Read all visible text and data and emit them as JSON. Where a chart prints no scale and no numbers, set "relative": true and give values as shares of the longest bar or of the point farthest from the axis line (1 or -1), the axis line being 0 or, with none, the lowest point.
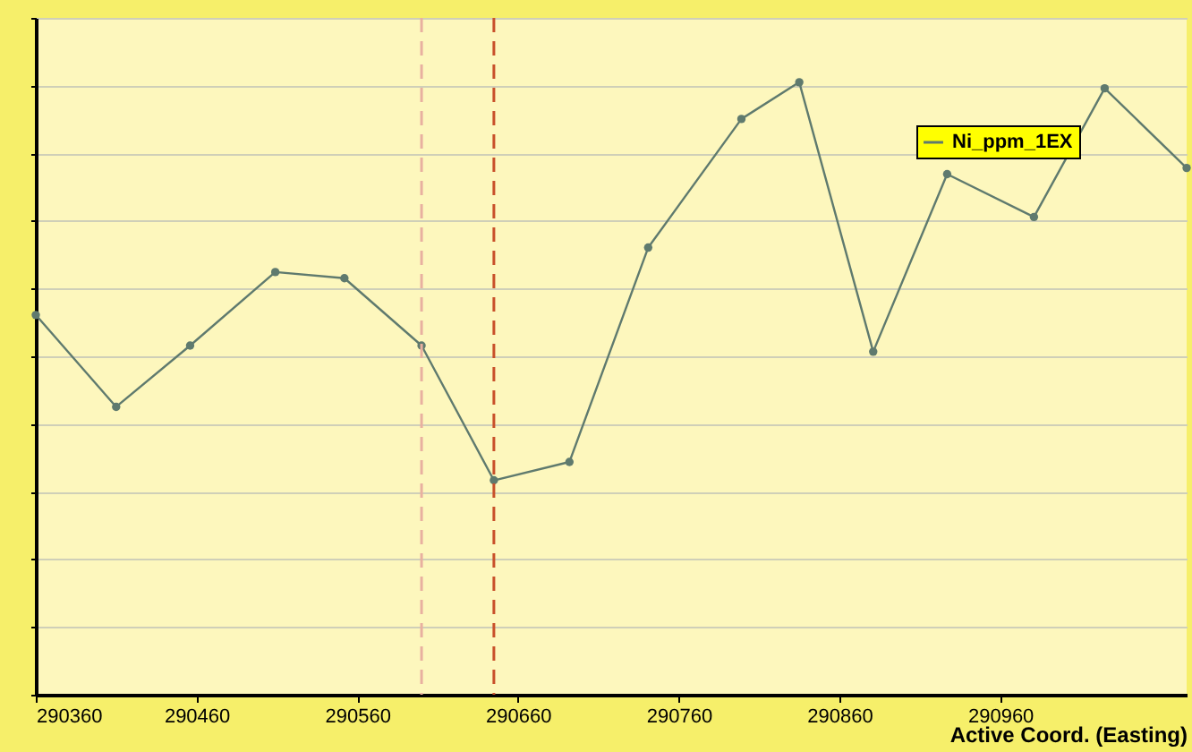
{
  "chart_data": {
    "type": "line",
    "relative": true,
    "xlabel": "Active Coord. (Easting)",
    "x": [
      290360,
      290410,
      290456,
      290509,
      290552,
      290600,
      290645,
      290692,
      290741,
      290799,
      290835,
      290881,
      290927,
      290981,
      291025,
      291076
    ],
    "xlim": [
      290360,
      291076
    ],
    "xticks": [
      290360,
      290460,
      290560,
      290660,
      290760,
      290860,
      290960
    ],
    "series": [
      {
        "name": "Ni_ppm_1EX",
        "color": "#5f7a6e",
        "values": [
          0.62,
          0.47,
          0.57,
          0.69,
          0.68,
          0.57,
          0.35,
          0.38,
          0.73,
          0.94,
          1,
          0.56,
          0.85,
          0.78,
          0.99,
          0.86
        ]
      }
    ],
    "ref_lines": [
      {
        "axis": "x",
        "value": 290600,
        "color": "#e8b0a0",
        "line_style": "dashed"
      },
      {
        "axis": "x",
        "value": 290645,
        "color": "#c8502a",
        "line_style": "dashed"
      }
    ],
    "marker": "circle",
    "grid": "y",
    "legend": "top right",
    "tick_labels": "x"
  }
}
